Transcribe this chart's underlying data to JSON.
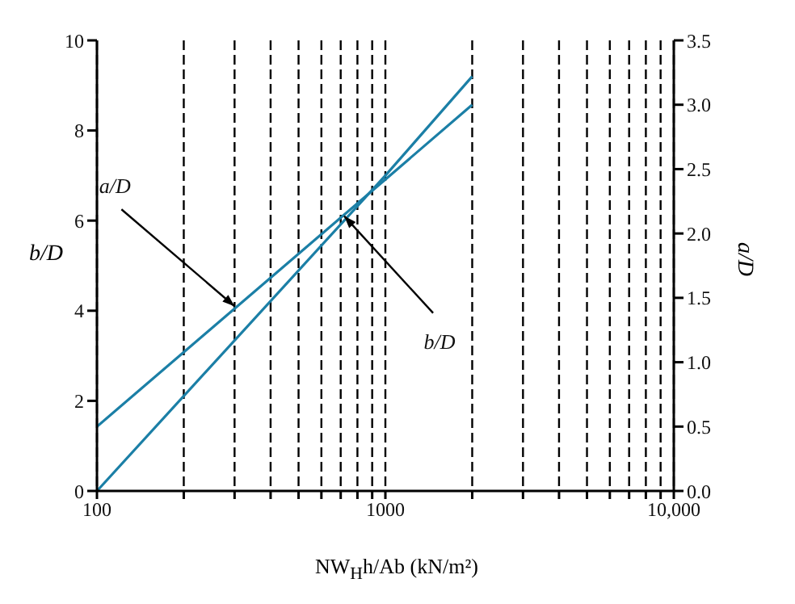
{
  "chart_data": {
    "type": "line",
    "xlabel": "NW$_{H}$h/Ab (kN/m²)",
    "ylabel": "b/D",
    "y2label": "a/D",
    "x": [
      100,
      1000,
      2000
    ],
    "series": [
      {
        "color": "#1b7fa6",
        "values": [
          0,
          7.0,
          9.2
        ]
      },
      {
        "color": "#1b7fa6",
        "values": [
          0.5,
          2.42,
          3.0
        ],
        "axis": "y2"
      }
    ],
    "log": "x",
    "xlim": [
      100,
      10000
    ],
    "xticks": [
      {
        "value": 100,
        "label": "100"
      },
      {
        "value": 200,
        "label": null
      },
      {
        "value": 300,
        "label": null
      },
      {
        "value": 400,
        "label": null
      },
      {
        "value": 500,
        "label": null
      },
      {
        "value": 600,
        "label": null
      },
      {
        "value": 700,
        "label": null
      },
      {
        "value": 800,
        "label": null
      },
      {
        "value": 900,
        "label": null
      },
      {
        "value": 1000,
        "label": "1000"
      },
      {
        "value": 2000,
        "label": null
      },
      {
        "value": 3000,
        "label": null
      },
      {
        "value": 4000,
        "label": null
      },
      {
        "value": 5000,
        "label": null
      },
      {
        "value": 6000,
        "label": null
      },
      {
        "value": 7000,
        "label": null
      },
      {
        "value": 8000,
        "label": null
      },
      {
        "value": 9000,
        "label": null
      },
      {
        "value": 10000,
        "label": "10,000"
      }
    ],
    "ylim": [
      0,
      10
    ],
    "yticks": [
      0,
      2,
      4,
      6,
      8,
      10
    ],
    "y2lim": [
      0,
      3.5
    ],
    "y2ticks": [
      {
        "value": 0,
        "label": "0.0"
      },
      {
        "value": 0.5,
        "label": "0.5"
      },
      {
        "value": 1,
        "label": "1.0"
      },
      {
        "value": 1.5,
        "label": "1.5"
      },
      {
        "value": 2,
        "label": "2.0"
      },
      {
        "value": 2.5,
        "label": "2.5"
      },
      {
        "value": 3,
        "label": "3.0"
      },
      {
        "value": 3.5,
        "label": "3.5"
      }
    ],
    "grid": "x",
    "legend": false,
    "marker": "none",
    "line_style": "solid",
    "annotations": [
      {
        "text": "a/D",
        "x": 300,
        "y": 4.1
      },
      {
        "text": "b/D",
        "x": 720,
        "y": 6.1
      }
    ]
  }
}
